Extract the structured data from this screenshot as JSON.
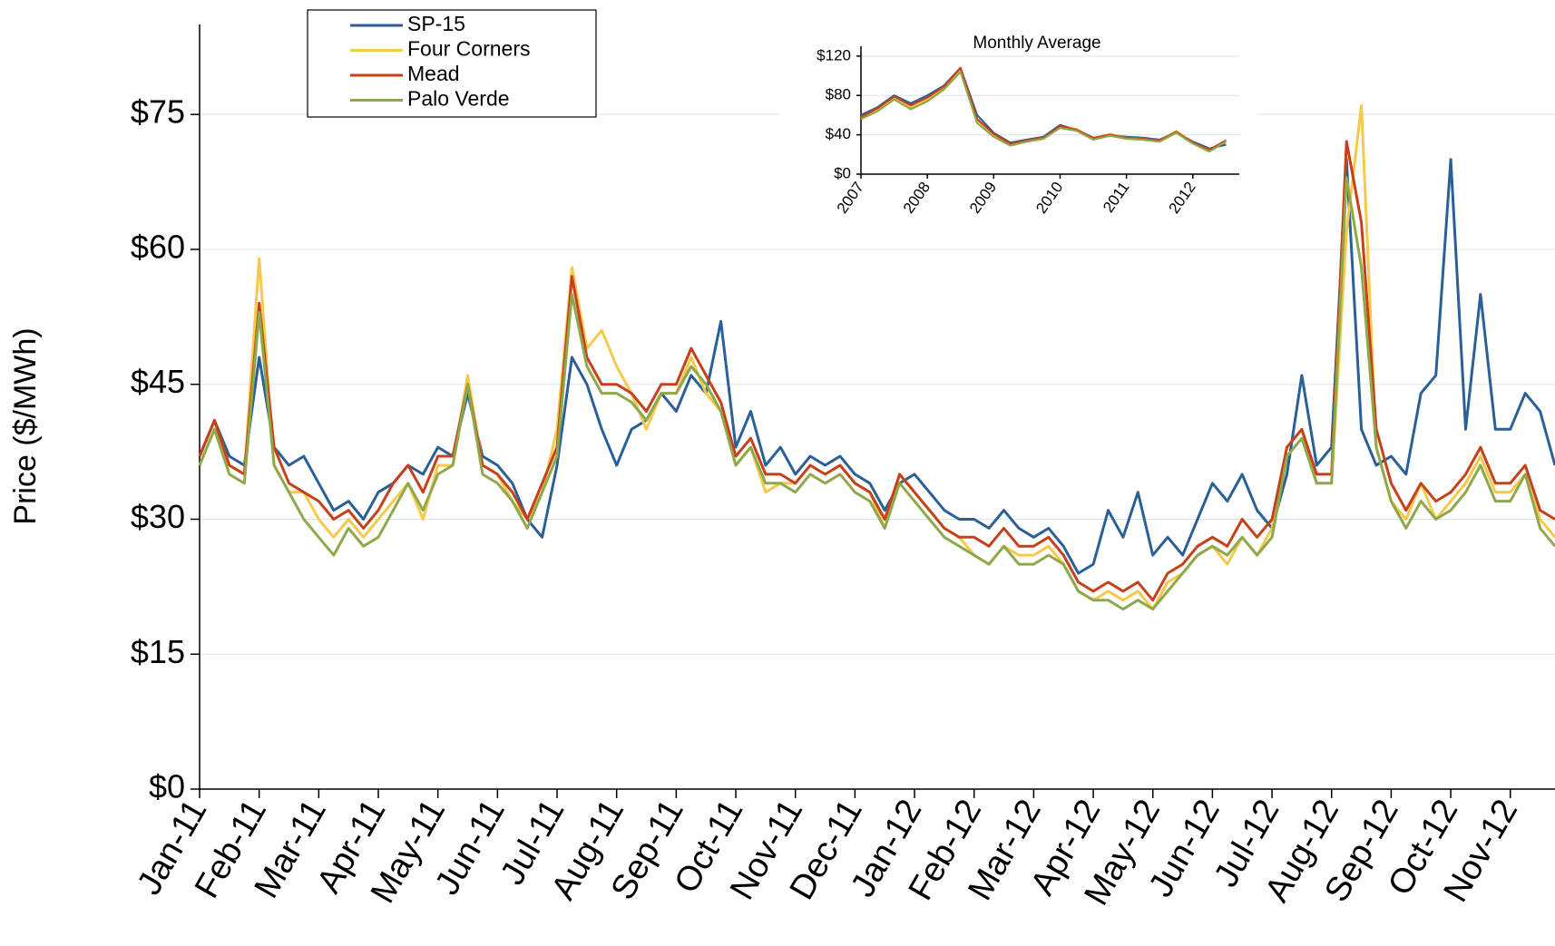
{
  "chart_data": [
    {
      "type": "line",
      "y_label": "Price ($/MWh)",
      "legend": "top-left",
      "categories": [
        "Jan-11",
        null,
        null,
        null,
        "Feb-11",
        null,
        null,
        null,
        "Mar-11",
        null,
        null,
        null,
        "Apr-11",
        null,
        null,
        null,
        "May-11",
        null,
        null,
        null,
        "Jun-11",
        null,
        null,
        null,
        "Jul-11",
        null,
        null,
        null,
        "Aug-11",
        null,
        null,
        null,
        "Sep-11",
        null,
        null,
        null,
        "Oct-11",
        null,
        null,
        null,
        "Nov-11",
        null,
        null,
        null,
        "Dec-11",
        null,
        null,
        null,
        "Jan-12",
        null,
        null,
        null,
        "Feb-12",
        null,
        null,
        null,
        "Mar-12",
        null,
        null,
        null,
        "Apr-12",
        null,
        null,
        null,
        "May-12",
        null,
        null,
        null,
        "Jun-12",
        null,
        null,
        null,
        "Jul-12",
        null,
        null,
        null,
        "Aug-12",
        null,
        null,
        null,
        "Sep-12",
        null,
        null,
        null,
        "Oct-12",
        null,
        null,
        null,
        "Nov-12",
        null,
        null,
        null
      ],
      "ylim": [
        0,
        85
      ],
      "yticks": [
        {
          "value": 0,
          "label": "$0"
        },
        {
          "value": 15,
          "label": "$15"
        },
        {
          "value": 30,
          "label": "$30"
        },
        {
          "value": 45,
          "label": "$45"
        },
        {
          "value": 60,
          "label": "$60"
        },
        {
          "value": 75,
          "label": "$75"
        }
      ],
      "grid": true,
      "series": [
        {
          "name": "SP-15",
          "color": "#2a5f98",
          "values": [
            37,
            41,
            37,
            36,
            48,
            38,
            36,
            37,
            34,
            31,
            32,
            30,
            33,
            34,
            36,
            35,
            38,
            37,
            44,
            37,
            36,
            34,
            30,
            28,
            36,
            48,
            45,
            40,
            36,
            40,
            41,
            44,
            42,
            46,
            44,
            52,
            38,
            42,
            36,
            38,
            35,
            37,
            36,
            37,
            35,
            34,
            31,
            34,
            35,
            33,
            31,
            30,
            30,
            29,
            31,
            29,
            28,
            29,
            27,
            24,
            25,
            31,
            28,
            33,
            26,
            28,
            26,
            30,
            34,
            32,
            35,
            31,
            29,
            35,
            46,
            36,
            38,
            70,
            40,
            36,
            37,
            35,
            44,
            46,
            70,
            40,
            55,
            40,
            40,
            44,
            42,
            36
          ]
        },
        {
          "name": "Four Corners",
          "color": "#f6c84c",
          "values": [
            36,
            40,
            36,
            35,
            59,
            36,
            33,
            33,
            30,
            28,
            30,
            28,
            30,
            32,
            34,
            30,
            36,
            36,
            46,
            36,
            35,
            32,
            30,
            33,
            40,
            58,
            49,
            51,
            47,
            44,
            40,
            44,
            44,
            48,
            44,
            42,
            36,
            38,
            33,
            34,
            34,
            36,
            35,
            36,
            34,
            33,
            29,
            35,
            33,
            31,
            29,
            28,
            26,
            25,
            27,
            26,
            26,
            27,
            25,
            22,
            21,
            22,
            21,
            22,
            20,
            23,
            24,
            26,
            27,
            25,
            28,
            26,
            29,
            38,
            40,
            34,
            34,
            62,
            76,
            38,
            32,
            30,
            34,
            30,
            32,
            34,
            37,
            33,
            33,
            35,
            30,
            28
          ]
        },
        {
          "name": "Mead",
          "color": "#c7401a",
          "values": [
            37,
            41,
            36,
            35,
            54,
            38,
            34,
            33,
            32,
            30,
            31,
            29,
            31,
            34,
            36,
            33,
            37,
            37,
            45,
            36,
            35,
            33,
            30,
            34,
            38,
            57,
            48,
            45,
            45,
            44,
            42,
            45,
            45,
            49,
            46,
            43,
            37,
            39,
            35,
            35,
            34,
            36,
            35,
            36,
            34,
            33,
            30,
            35,
            33,
            31,
            29,
            28,
            28,
            27,
            29,
            27,
            27,
            28,
            26,
            23,
            22,
            23,
            22,
            23,
            21,
            24,
            25,
            27,
            28,
            27,
            30,
            28,
            30,
            38,
            40,
            35,
            35,
            72,
            63,
            40,
            34,
            31,
            34,
            32,
            33,
            35,
            38,
            34,
            34,
            36,
            31,
            30
          ]
        },
        {
          "name": "Palo Verde",
          "color": "#8fa84a",
          "values": [
            36,
            40,
            35,
            34,
            53,
            36,
            33,
            30,
            28,
            26,
            29,
            27,
            28,
            31,
            34,
            31,
            35,
            36,
            45,
            35,
            34,
            32,
            29,
            33,
            37,
            55,
            47,
            44,
            44,
            43,
            41,
            44,
            44,
            47,
            45,
            42,
            36,
            38,
            34,
            34,
            33,
            35,
            34,
            35,
            33,
            32,
            29,
            34,
            32,
            30,
            28,
            27,
            26,
            25,
            27,
            25,
            25,
            26,
            25,
            22,
            21,
            21,
            20,
            21,
            20,
            22,
            24,
            26,
            27,
            26,
            28,
            26,
            28,
            37,
            39,
            34,
            34,
            68,
            58,
            38,
            32,
            29,
            32,
            30,
            31,
            33,
            36,
            32,
            32,
            35,
            29,
            27
          ]
        }
      ]
    },
    {
      "type": "line",
      "title": "Monthly Average",
      "categories": [
        "2007",
        null,
        null,
        null,
        "2008",
        null,
        null,
        null,
        "2009",
        null,
        null,
        null,
        "2010",
        null,
        null,
        null,
        "2011",
        null,
        null,
        null,
        "2012",
        null,
        null
      ],
      "ylim": [
        0,
        130
      ],
      "yticks": [
        {
          "value": 0,
          "label": "$0"
        },
        {
          "value": 40,
          "label": "$40"
        },
        {
          "value": 80,
          "label": "$80"
        },
        {
          "value": 120,
          "label": "$120"
        }
      ],
      "grid": true,
      "series": [
        {
          "name": "SP-15",
          "color": "#2a5f98",
          "values": [
            60,
            68,
            80,
            72,
            80,
            90,
            108,
            60,
            42,
            32,
            35,
            38,
            50,
            45,
            36,
            40,
            38,
            37,
            35,
            43,
            33,
            26,
            30
          ]
        },
        {
          "name": "Four Corners",
          "color": "#f6c84c",
          "values": [
            58,
            66,
            78,
            68,
            76,
            88,
            106,
            55,
            40,
            30,
            34,
            37,
            48,
            46,
            36,
            41,
            37,
            36,
            34,
            44,
            32,
            24,
            35
          ]
        },
        {
          "name": "Mead",
          "color": "#c7401a",
          "values": [
            58,
            67,
            79,
            70,
            78,
            89,
            108,
            56,
            41,
            31,
            34,
            37,
            49,
            45,
            37,
            40,
            37,
            36,
            34,
            43,
            32,
            25,
            34
          ]
        },
        {
          "name": "Palo Verde",
          "color": "#8fa84a",
          "values": [
            56,
            64,
            76,
            66,
            74,
            86,
            104,
            52,
            38,
            29,
            33,
            36,
            47,
            44,
            35,
            39,
            36,
            35,
            33,
            42,
            31,
            23,
            33
          ]
        }
      ]
    }
  ]
}
